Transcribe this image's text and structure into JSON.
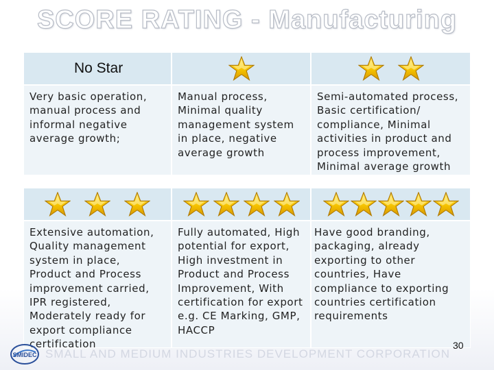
{
  "title": "SCORE RATING - Manufacturing",
  "table1": {
    "headers": [
      "No Star",
      "",
      ""
    ],
    "stars": [
      0,
      1,
      2
    ],
    "cells": [
      "Very basic operation, manual process and informal negative average growth;",
      "Manual process, Minimal quality management system in place, negative average growth",
      "Semi-automated process, Basic certification/ compliance, Minimal activities in product and process improvement, Minimal average growth"
    ]
  },
  "table2": {
    "stars": [
      3,
      4,
      5
    ],
    "cells": [
      "Extensive automation, Quality management system in place, Product and Process improvement carried, IPR registered, Moderately ready for export compliance certification",
      "Fully automated, High potential for export, High investment in Product and Process Improvement, With certification for export e.g. CE Marking, GMP, HACCP",
      "Have good branding, packaging, already exporting to other countries, Have compliance to exporting countries certification requirements"
    ]
  },
  "footer": {
    "page_number": "30",
    "organization": "SMALL AND MEDIUM INDUSTRIES DEVELOPMENT CORPORATION",
    "logo_text": "SMIDEC"
  },
  "colors": {
    "header_bg": "#d9e8f1",
    "cell_bg": "#eef4f8",
    "star_fill": "#f5c400"
  },
  "icons": {
    "rating": "star-icon",
    "logo": "smidec-logo"
  }
}
